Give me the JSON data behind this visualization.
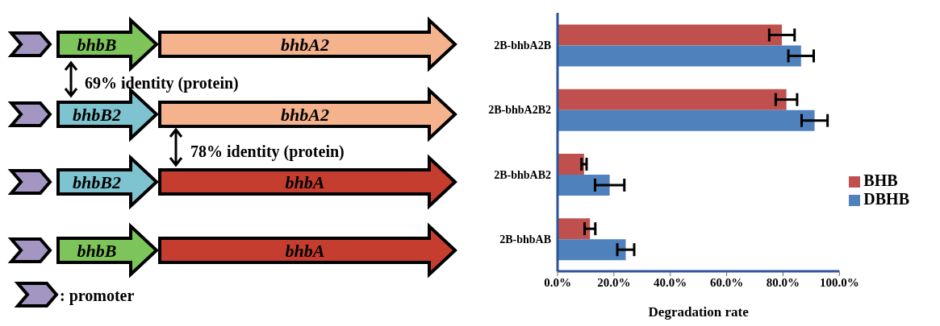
{
  "chart_data": [
    {
      "type": "other",
      "annotations": [
        "bhbB",
        "bhbA2",
        "69% identity (protein)",
        "bhbB2",
        "bhbA2",
        "78% identity (protein)",
        "bhbB2",
        "bhbA",
        "bhbB",
        "bhbA",
        ": promoter"
      ]
    },
    {
      "type": "bar",
      "orientation": "horizontal",
      "categories": [
        "2B-bhbA2B",
        "2B-bhbA2B2",
        "2B-bhbAB2",
        "2B-bhbAB"
      ],
      "series": [
        {
          "name": "BHB",
          "color": "#c0504d",
          "values": [
            79.6,
            81.2,
            9.4,
            11.5
          ],
          "errors": [
            4.5,
            3.8,
            0.9,
            1.9
          ]
        },
        {
          "name": "DBHB",
          "color": "#4f81bd",
          "values": [
            86.4,
            91.2,
            18.5,
            24.2
          ],
          "errors": [
            4.5,
            4.6,
            5.2,
            3
          ]
        }
      ],
      "xlabel": "Degradation rate",
      "xlim": [
        0,
        100
      ],
      "xticks": [
        {
          "value": 0,
          "label": "0.0%"
        },
        {
          "value": 20,
          "label": "20.0%"
        },
        {
          "value": 40,
          "label": "40.0%"
        },
        {
          "value": 60,
          "label": "60.0%"
        },
        {
          "value": 80,
          "label": "80.0%"
        },
        {
          "value": 100,
          "label": "100.0%"
        }
      ],
      "legend": "right"
    }
  ]
}
